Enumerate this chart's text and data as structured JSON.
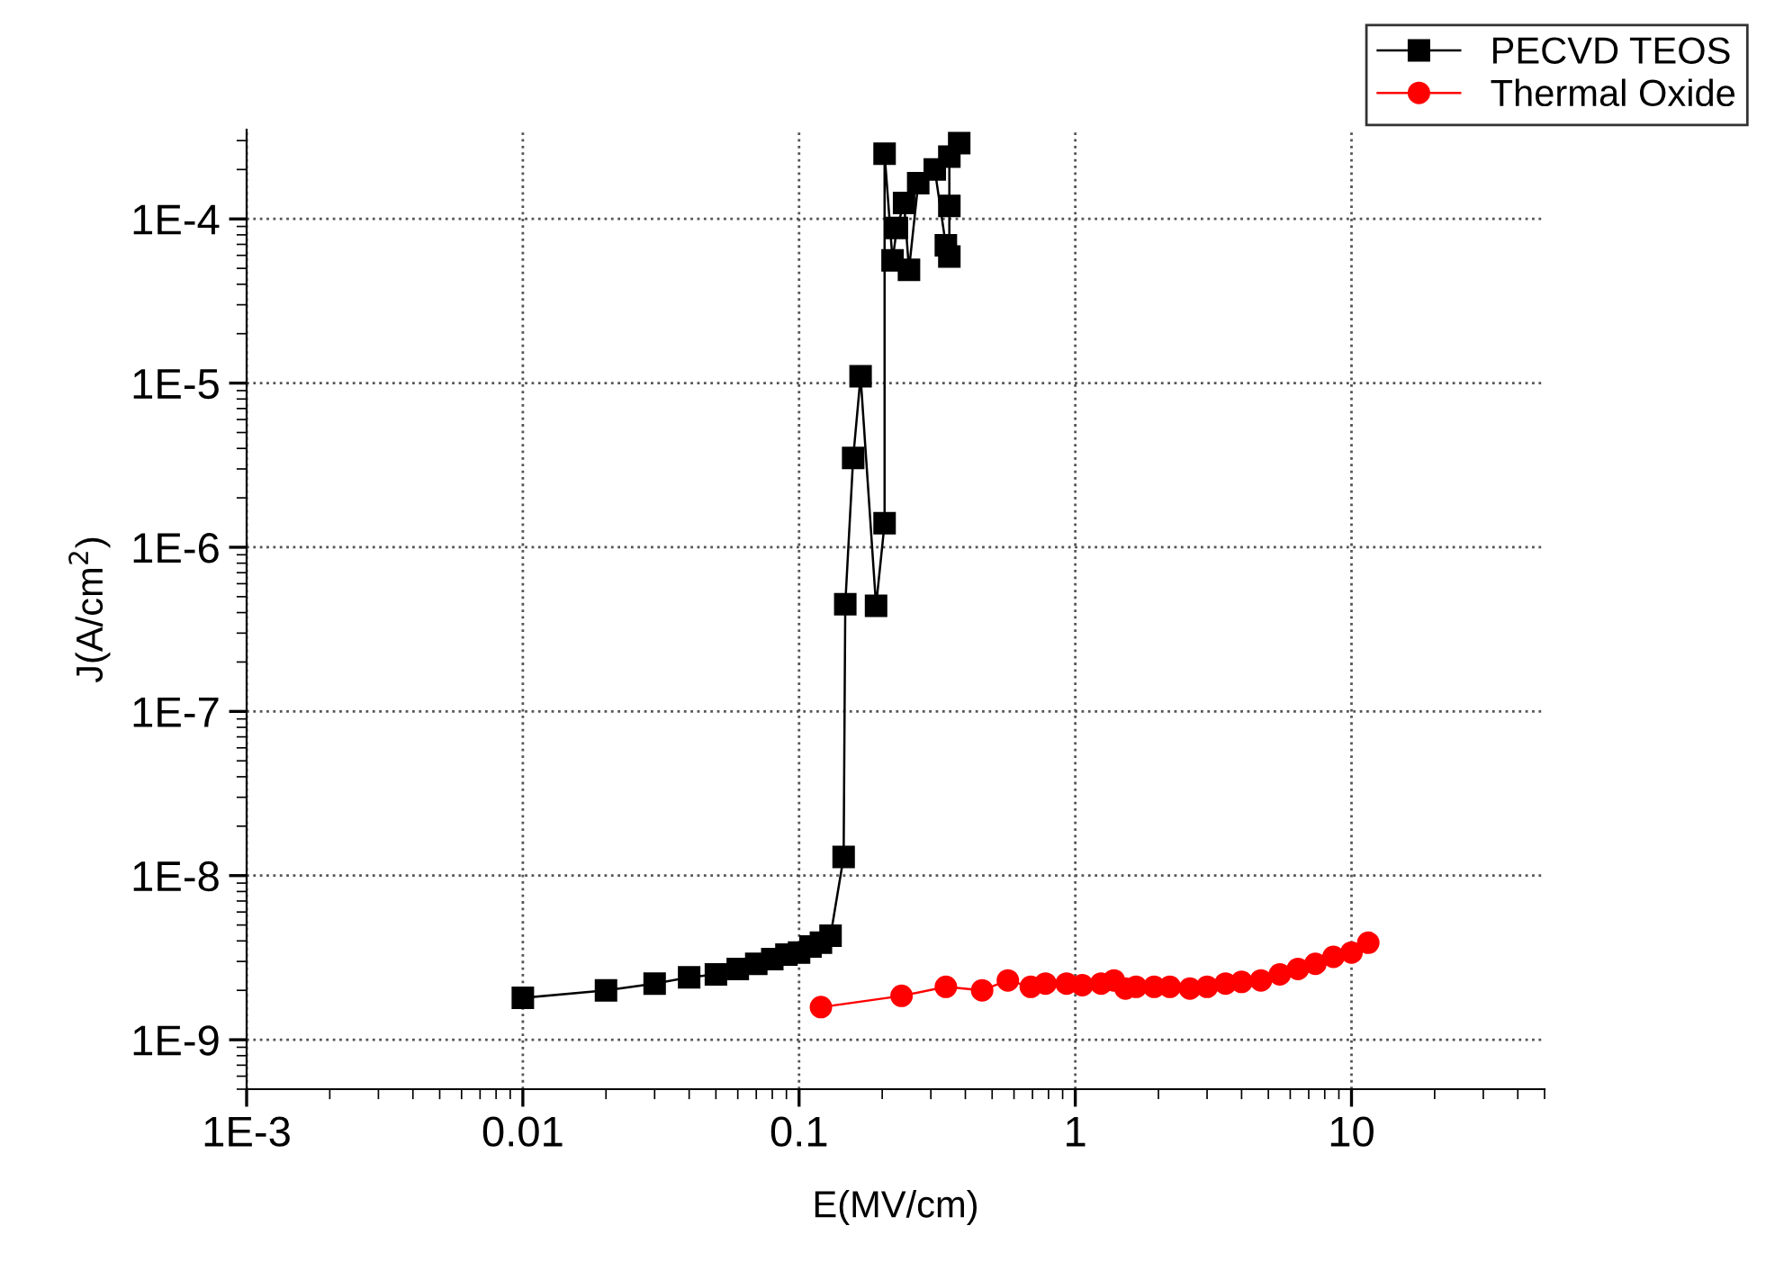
{
  "chart_data": {
    "type": "line",
    "xlabel": "E(MV/cm)",
    "ylabel": "J(A/cm$^{2}$)",
    "log": "xy",
    "grid": true,
    "legend": "top right",
    "xlim": [
      0.001,
      50
    ],
    "xticks": [
      {
        "value": 0.001,
        "label": "1E-3"
      },
      0.01,
      0.1,
      1,
      10
    ],
    "ylim": [
      5e-10,
      0.00035
    ],
    "yticks": [
      {
        "value": 1e-09,
        "label": "1E-9"
      },
      {
        "value": 1e-08,
        "label": "1E-8"
      },
      {
        "value": 1e-07,
        "label": "1E-7"
      },
      {
        "value": 1e-06,
        "label": "1E-6"
      },
      {
        "value": 1e-05,
        "label": "1E-5"
      },
      {
        "value": 0.0001,
        "label": "1E-4"
      }
    ],
    "series": [
      {
        "name": "PECVD TEOS",
        "color": "#000000",
        "marker": "square",
        "x": [
          0.01,
          0.02,
          0.03,
          0.04,
          0.05,
          0.06,
          0.07,
          0.08,
          0.09,
          0.1,
          0.11,
          0.12,
          0.13,
          0.145,
          0.147,
          0.157,
          0.167,
          0.19,
          0.204,
          0.204,
          0.218,
          0.226,
          0.24,
          0.25,
          0.27,
          0.31,
          0.34,
          0.35,
          0.35,
          0.35,
          0.38
        ],
        "values": [
          1.8e-09,
          2e-09,
          2.2e-09,
          2.4e-09,
          2.5e-09,
          2.7e-09,
          2.9e-09,
          3.1e-09,
          3.3e-09,
          3.4e-09,
          3.7e-09,
          3.9e-09,
          4.3e-09,
          1.3e-08,
          4.5e-07,
          3.5e-06,
          1.1e-05,
          4.4e-07,
          1.4e-06,
          0.00025,
          5.6e-05,
          8.8e-05,
          0.000125,
          4.9e-05,
          0.000165,
          0.0002,
          6.9e-05,
          5.9e-05,
          0.00012,
          0.00024,
          0.00029
        ]
      },
      {
        "name": "Thermal Oxide",
        "color": "#ff0000",
        "marker": "circle",
        "x": [
          0.12,
          0.235,
          0.34,
          0.46,
          0.57,
          0.69,
          0.78,
          0.93,
          1.06,
          1.24,
          1.38,
          1.52,
          1.66,
          1.93,
          2.2,
          2.6,
          3.0,
          3.5,
          4.0,
          4.7,
          5.5,
          6.4,
          7.4,
          8.6,
          10,
          11.5
        ],
        "values": [
          1.58e-09,
          1.85e-09,
          2.1e-09,
          2e-09,
          2.3e-09,
          2.1e-09,
          2.2e-09,
          2.2e-09,
          2.15e-09,
          2.2e-09,
          2.3e-09,
          2.05e-09,
          2.1e-09,
          2.1e-09,
          2.1e-09,
          2.05e-09,
          2.1e-09,
          2.2e-09,
          2.25e-09,
          2.3e-09,
          2.5e-09,
          2.7e-09,
          2.9e-09,
          3.2e-09,
          3.4e-09,
          3.9e-09
        ]
      }
    ]
  }
}
